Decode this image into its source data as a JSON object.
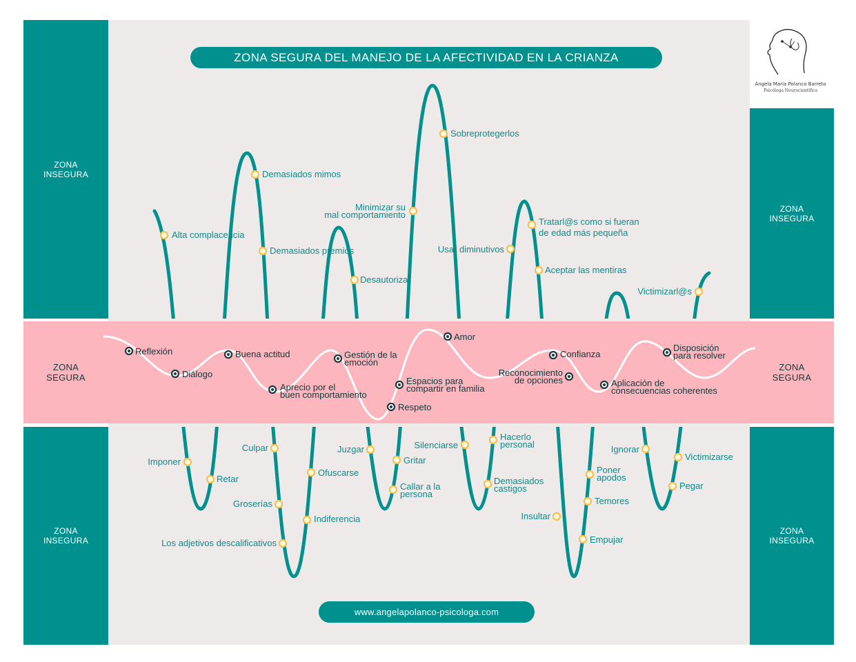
{
  "title": "ZONA SEGURA DEL MANEJO DE LA AFECTIVIDAD EN LA CRIANZA",
  "website": "www.angelapolanco-psicologa.com",
  "logo": {
    "name": "Ángela María Polanco Barreto",
    "role": "Psicóloga Neurocientífica"
  },
  "zones": {
    "left_top": [
      "ZONA",
      "INSEGURA"
    ],
    "right_top": [
      "ZONA",
      "INSEGURA"
    ],
    "left_mid": [
      "ZONA",
      "SEGURA"
    ],
    "right_mid": [
      "ZONA",
      "SEGURA"
    ],
    "left_bottom": [
      "ZONA",
      "INSEGURA"
    ],
    "right_bottom": [
      "ZONA",
      "INSEGURA"
    ]
  },
  "colors": {
    "teal": "#00918f",
    "pink": "#fdb5be",
    "panel": "#eeeaea",
    "gold": "#f2c14e",
    "dark": "#1d3a3d"
  },
  "upper_items": [
    "Alta complacencia",
    "Demasiados mimos",
    "Demasiados premios",
    "Minimizar su",
    "mal comportamiento",
    "Desautorizar",
    "Sobreprotegerlos",
    "Usar diminutivos",
    "Tratarl@s como si fueran",
    "de edad más pequeña",
    "Aceptar las mentiras",
    "Victimizarl@s"
  ],
  "middle_items": [
    "Reflexión",
    "Diálogo",
    "Buena actitud",
    "Aprecio por el",
    "buen comportamiento",
    "Gestión de la",
    "emoción",
    "Respeto",
    "Espacios para",
    "compartir en familia",
    "Amor",
    "Reconocimiento",
    "de opciones",
    "Confianza",
    "Aplicación de",
    "consecuencias coherentes",
    "Disposición",
    "para resolver"
  ],
  "lower_items": [
    "Imponer",
    "Retar",
    "Culpar",
    "Groserías",
    "Los adjetivos descalificativos",
    "Ofuscarse",
    "Indiferencia",
    "Juzgar",
    "Gritar",
    "Callar a la",
    "persona",
    "Silenciarse",
    "Hacerlo",
    "personal",
    "Demasiados",
    "castigos",
    "Insultar",
    "Poner",
    "apodos",
    "Temores",
    "Empujar",
    "Ignorar",
    "Victimizarse",
    "Pegar"
  ]
}
